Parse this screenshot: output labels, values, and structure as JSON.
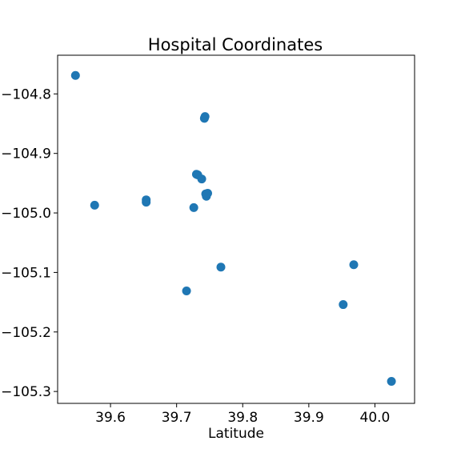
{
  "chart_data": {
    "type": "scatter",
    "title": "Hospital Coordinates",
    "xlabel": "Latitude",
    "ylabel": "",
    "xlim": [
      39.52,
      40.06
    ],
    "ylim": [
      -105.32,
      -104.735
    ],
    "xticks": [
      39.6,
      39.7,
      39.8,
      39.9,
      40.0
    ],
    "xtick_labels": [
      "39.6",
      "39.7",
      "39.8",
      "39.9",
      "40.0"
    ],
    "yticks": [
      -104.8,
      -104.9,
      -105.0,
      -105.1,
      -105.2,
      -105.3
    ],
    "ytick_labels": [
      "−104.8",
      "−104.9",
      "−105.0",
      "−105.1",
      "−105.2",
      "−105.3"
    ],
    "grid": false,
    "marker_color": "#1f77b4",
    "points": [
      {
        "x": 39.547,
        "y": -104.769
      },
      {
        "x": 39.576,
        "y": -104.987
      },
      {
        "x": 39.654,
        "y": -104.978
      },
      {
        "x": 39.654,
        "y": -104.982
      },
      {
        "x": 39.715,
        "y": -105.131
      },
      {
        "x": 39.726,
        "y": -104.991
      },
      {
        "x": 39.73,
        "y": -104.935
      },
      {
        "x": 39.732,
        "y": -104.936
      },
      {
        "x": 39.738,
        "y": -104.943
      },
      {
        "x": 39.742,
        "y": -104.841
      },
      {
        "x": 39.743,
        "y": -104.838
      },
      {
        "x": 39.744,
        "y": -104.968
      },
      {
        "x": 39.745,
        "y": -104.972
      },
      {
        "x": 39.747,
        "y": -104.967
      },
      {
        "x": 39.767,
        "y": -105.091
      },
      {
        "x": 39.952,
        "y": -105.154
      },
      {
        "x": 39.968,
        "y": -105.087
      },
      {
        "x": 40.025,
        "y": -105.283
      }
    ]
  }
}
